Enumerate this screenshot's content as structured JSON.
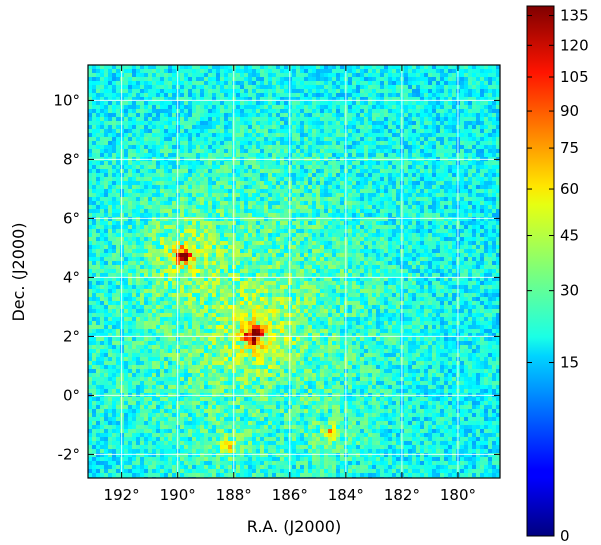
{
  "chart_data": {
    "type": "heatmap",
    "title": "",
    "xlabel": "R.A. (J2000)",
    "ylabel": "Dec. (J2000)",
    "x_reversed": true,
    "xlim": [
      193.2,
      178.5
    ],
    "ylim": [
      -2.8,
      11.2
    ],
    "x_ticks": [
      192,
      190,
      188,
      186,
      184,
      182,
      180
    ],
    "x_tick_labels": [
      "192°",
      "190°",
      "188°",
      "186°",
      "184°",
      "182°",
      "180°"
    ],
    "y_ticks": [
      10,
      8,
      6,
      4,
      2,
      0,
      -2
    ],
    "y_tick_labels": [
      "10°",
      "8°",
      "6°",
      "4°",
      "2°",
      "0°",
      "-2°"
    ],
    "grid": true,
    "colormap": "jet",
    "colorbar": {
      "scale": "sqrt",
      "range": [
        0,
        140
      ],
      "ticks": [
        135,
        120,
        105,
        90,
        75,
        60,
        45,
        30,
        15,
        0
      ],
      "tick_labels": [
        "135",
        "120",
        "105",
        "90",
        "75",
        "60",
        "45",
        "30",
        "15",
        "0"
      ]
    },
    "background_level": 20,
    "diffuse_halo": {
      "ra": 187.5,
      "dec": 3.0,
      "peak": 12,
      "width_deg": 3.5
    },
    "sources": [
      {
        "ra": 187.3,
        "dec": 2.05,
        "peak": 140
      },
      {
        "ra": 189.8,
        "dec": 4.75,
        "peak": 100
      },
      {
        "ra": 184.6,
        "dec": -1.3,
        "peak": 38
      },
      {
        "ra": 188.2,
        "dec": -1.75,
        "peak": 30
      }
    ]
  }
}
